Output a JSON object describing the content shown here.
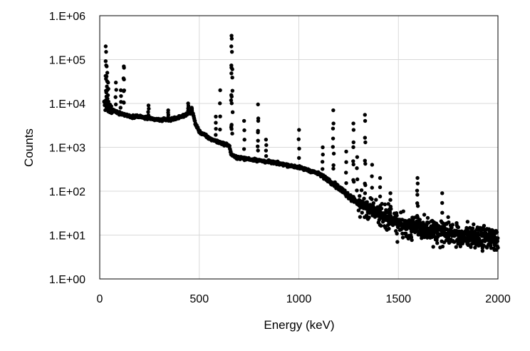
{
  "chart_data": {
    "type": "scatter",
    "xlabel": "Energy (keV)",
    "ylabel": "Counts",
    "xlim": [
      0,
      2000
    ],
    "ylim": [
      1,
      1000000
    ],
    "y_scale": "log",
    "grid": true,
    "marker_color": "#000000",
    "x_ticks": [
      0,
      500,
      1000,
      1500,
      2000
    ],
    "x_tick_labels": [
      "0",
      "500",
      "1000",
      "1500",
      "2000"
    ],
    "y_ticks": [
      1,
      10,
      100,
      1000,
      10000,
      100000,
      1000000
    ],
    "y_tick_labels": [
      "1.E+00",
      "1.E+01",
      "1.E+02",
      "1.E+03",
      "1.E+04",
      "1.E+05",
      "1.E+06"
    ],
    "series": [
      {
        "continuum": {
          "x": [
            25,
            30,
            40,
            60,
            80,
            100,
            130,
            160,
            180,
            200,
            250,
            300,
            350,
            400,
            430,
            460,
            470,
            480,
            500,
            550,
            600,
            650,
            660,
            680,
            700,
            800,
            900,
            1000,
            1050,
            1100,
            1150,
            1200,
            1250,
            1300,
            1350,
            1400,
            1500,
            1600,
            1700,
            1800,
            1900,
            2000
          ],
          "y": [
            10000,
            9000,
            8000,
            7000,
            6500,
            6000,
            5500,
            5000,
            5200,
            5000,
            4500,
            4200,
            4300,
            4800,
            5500,
            6500,
            5500,
            3500,
            2300,
            1600,
            1300,
            1100,
            700,
            600,
            580,
            500,
            430,
            350,
            300,
            250,
            180,
            120,
            80,
            55,
            40,
            30,
            18,
            14,
            12,
            10,
            9,
            8
          ]
        },
        "peaks": [
          {
            "x": 30,
            "y": 200000
          },
          {
            "x": 32,
            "y": 150000
          },
          {
            "x": 35,
            "y": 70000
          },
          {
            "x": 38,
            "y": 50000
          },
          {
            "x": 42,
            "y": 30000
          },
          {
            "x": 81,
            "y": 30000
          },
          {
            "x": 106,
            "y": 20000
          },
          {
            "x": 121,
            "y": 70000
          },
          {
            "x": 122,
            "y": 65000
          },
          {
            "x": 245,
            "y": 9000
          },
          {
            "x": 344,
            "y": 7000
          },
          {
            "x": 444,
            "y": 10000
          },
          {
            "x": 462,
            "y": 8000
          },
          {
            "x": 583,
            "y": 5000
          },
          {
            "x": 605,
            "y": 20000
          },
          {
            "x": 662,
            "y": 350000
          },
          {
            "x": 663,
            "y": 300000
          },
          {
            "x": 661,
            "y": 200000
          },
          {
            "x": 664,
            "y": 150000
          },
          {
            "x": 666,
            "y": 60000
          },
          {
            "x": 725,
            "y": 4000
          },
          {
            "x": 795,
            "y": 9500
          },
          {
            "x": 796,
            "y": 4000
          },
          {
            "x": 835,
            "y": 1500
          },
          {
            "x": 1001,
            "y": 2500
          },
          {
            "x": 1120,
            "y": 1000
          },
          {
            "x": 1173,
            "y": 7000
          },
          {
            "x": 1174,
            "y": 3500
          },
          {
            "x": 1238,
            "y": 800
          },
          {
            "x": 1274,
            "y": 3500
          },
          {
            "x": 1275,
            "y": 2500
          },
          {
            "x": 1293,
            "y": 600
          },
          {
            "x": 1332,
            "y": 5500
          },
          {
            "x": 1333,
            "y": 4000
          },
          {
            "x": 1368,
            "y": 400
          },
          {
            "x": 1408,
            "y": 200
          },
          {
            "x": 1460,
            "y": 90
          },
          {
            "x": 1596,
            "y": 200
          },
          {
            "x": 1597,
            "y": 150
          },
          {
            "x": 1720,
            "y": 90
          }
        ]
      }
    ]
  }
}
